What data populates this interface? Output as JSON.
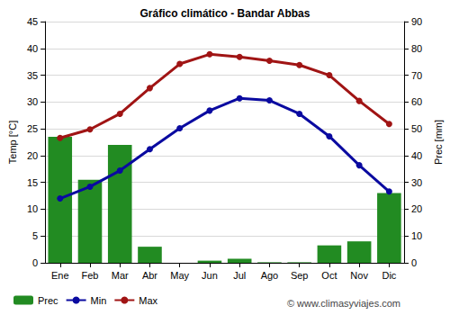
{
  "chart_data": {
    "type": "bar",
    "title": "Gráfico climático - Bandar Abbas",
    "ylabel": "Temp [°C]",
    "y2label": "Prec [mm]",
    "categories": [
      "Ene",
      "Feb",
      "Mar",
      "Abr",
      "May",
      "Jun",
      "Jul",
      "Ago",
      "Sep",
      "Oct",
      "Nov",
      "Dic"
    ],
    "series": [
      {
        "name": "Prec",
        "type": "bar",
        "axis": "y2",
        "color": "#228b22",
        "values": [
          47,
          31,
          44,
          6,
          0,
          0.8,
          1.5,
          0.2,
          0.2,
          6.5,
          8,
          26
        ]
      },
      {
        "name": "Min",
        "type": "line",
        "color": "#0a0aa0",
        "marker": "circle",
        "values": [
          12.0,
          14.2,
          17.2,
          21.2,
          25.1,
          28.4,
          30.7,
          30.3,
          27.8,
          23.6,
          18.2,
          13.3
        ]
      },
      {
        "name": "Max",
        "type": "line",
        "color": "#a01414",
        "marker": "circle",
        "values": [
          23.3,
          24.9,
          27.8,
          32.6,
          37.1,
          38.9,
          38.4,
          37.7,
          36.9,
          35.0,
          30.2,
          25.9
        ]
      }
    ],
    "ylim": [
      0,
      45
    ],
    "yticks": [
      0,
      5,
      10,
      15,
      20,
      25,
      30,
      35,
      40,
      45
    ],
    "y2lim": [
      0,
      90
    ],
    "y2ticks": [
      0,
      10,
      20,
      30,
      40,
      50,
      60,
      70,
      80,
      90
    ],
    "grid": true,
    "legend": "bottom",
    "annotations": [
      "© www.climasyviajes.com"
    ]
  }
}
